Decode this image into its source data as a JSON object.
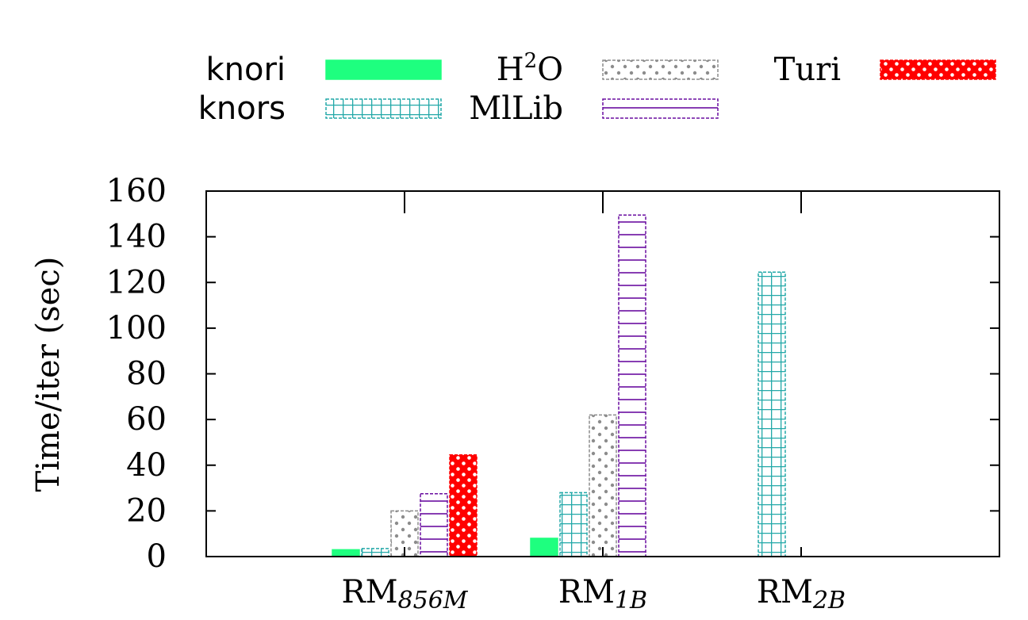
{
  "chart_data": {
    "type": "bar",
    "categories": [
      {
        "main": "RM",
        "sub": "856M"
      },
      {
        "main": "RM",
        "sub": "1B"
      },
      {
        "main": "RM",
        "sub": "2B"
      }
    ],
    "series": [
      {
        "name": "knori",
        "values": [
          3,
          8,
          null
        ],
        "color": "#1eff7f",
        "pattern": "solid"
      },
      {
        "name": "knors",
        "values": [
          3.5,
          28,
          124.5
        ],
        "color": "#22a8a8",
        "pattern": "grid"
      },
      {
        "name": "H2O",
        "values": [
          20,
          62,
          null
        ],
        "color": "#8c8c8c",
        "pattern": "dots"
      },
      {
        "name": "MlLib",
        "values": [
          27.5,
          149.5,
          null
        ],
        "color": "#6a0ea0",
        "pattern": "hlines"
      },
      {
        "name": "Turi",
        "values": [
          44.5,
          null,
          null
        ],
        "color": "#ff0000",
        "pattern": "reddots"
      }
    ],
    "ylabel": "Time/iter (sec)",
    "xlabel": "",
    "ylim": [
      0,
      160
    ],
    "yticks": [
      0,
      20,
      40,
      60,
      80,
      100,
      120,
      140,
      160
    ],
    "grid": false,
    "legend_placement": "top"
  }
}
